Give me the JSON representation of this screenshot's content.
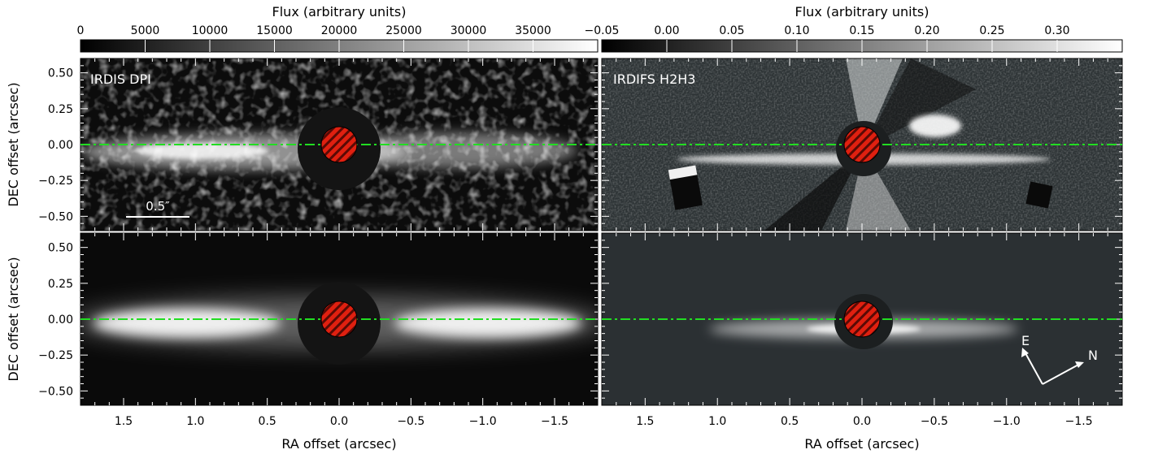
{
  "chart_data": {
    "type": "heatmap",
    "colorbars": [
      {
        "label": "Flux (arbitrary units)",
        "ticks": [
          "0",
          "5000",
          "10000",
          "15000",
          "20000",
          "25000",
          "30000",
          "35000"
        ],
        "range": [
          0,
          35000
        ]
      },
      {
        "label": "Flux (arbitrary units)",
        "ticks": [
          "−0.05",
          "0.00",
          "0.05",
          "0.10",
          "0.15",
          "0.20",
          "0.25",
          "0.30"
        ],
        "range": [
          -0.05,
          0.3
        ]
      }
    ],
    "xlabel": "RA offset (arcsec)",
    "ylabel": "DEC offset (arcsec)",
    "xlim": [
      1.8,
      -1.8
    ],
    "ylim": [
      -0.6,
      0.6
    ],
    "x_ticks": [
      "1.5",
      "1.0",
      "0.5",
      "0.0",
      "−0.5",
      "−1.0",
      "−1.5"
    ],
    "y_ticks": [
      "0.50",
      "0.25",
      "0.00",
      "−0.25",
      "−0.50"
    ],
    "x_tick_values": [
      1.5,
      1.0,
      0.5,
      0.0,
      -0.5,
      -1.0,
      -1.5
    ],
    "y_tick_values": [
      0.5,
      0.25,
      0.0,
      -0.25,
      -0.5
    ],
    "midplane_dec": 0.0,
    "panels": [
      {
        "label": "IRDIS DPI",
        "row": "top",
        "col": "left",
        "scale_bar": "0.5″"
      },
      {
        "label": "IRDIFS H2H3",
        "row": "top",
        "col": "right"
      },
      {
        "label": "",
        "row": "bottom",
        "col": "left"
      },
      {
        "label": "",
        "row": "bottom",
        "col": "right",
        "compass": {
          "east": "E",
          "north": "N"
        }
      }
    ],
    "colors": {
      "midplane_line": "#22dd22",
      "mask_fill": "#e02010",
      "mask_hatch": "#5a0a05"
    }
  }
}
